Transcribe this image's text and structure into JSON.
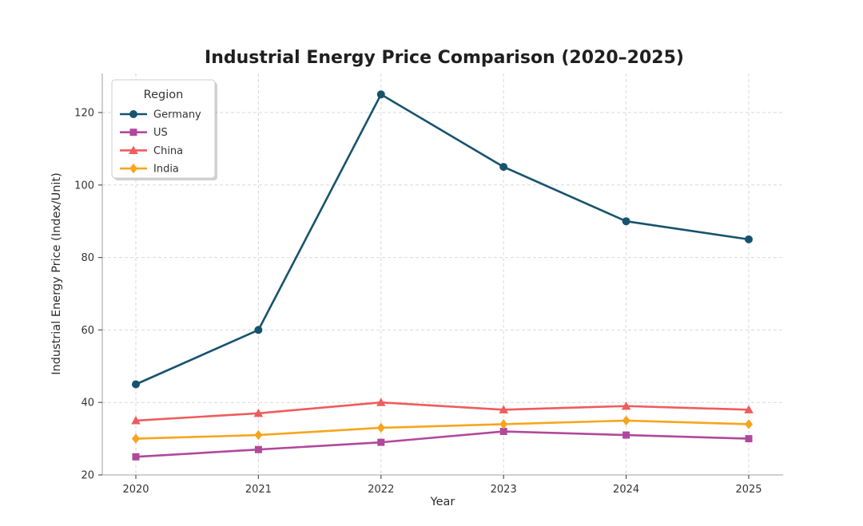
{
  "chart_data": {
    "type": "line",
    "title": "Industrial Energy Price Comparison (2020–2025)",
    "xlabel": "Year",
    "ylabel": "Industrial Energy Price (Index/Unit)",
    "legend_title": "Region",
    "legend_position": "upper left",
    "grid": true,
    "x": [
      2020,
      2021,
      2022,
      2023,
      2024,
      2025
    ],
    "xtick_labels": [
      "2020",
      "2021",
      "2022",
      "2023",
      "2024",
      "2025"
    ],
    "yticks": [
      20,
      40,
      60,
      80,
      100,
      120
    ],
    "ylim": [
      20,
      131
    ],
    "series": [
      {
        "name": "Germany",
        "marker": "circle",
        "color": "#17536d",
        "values": [
          45,
          60,
          125,
          105,
          90,
          85
        ]
      },
      {
        "name": "US",
        "marker": "square",
        "color": "#b1489c",
        "values": [
          25,
          27,
          29,
          32,
          31,
          30
        ]
      },
      {
        "name": "China",
        "marker": "triangle",
        "color": "#ef5c5c",
        "values": [
          35,
          37,
          40,
          38,
          39,
          38
        ]
      },
      {
        "name": "India",
        "marker": "diamond",
        "color": "#f7a51d",
        "values": [
          30,
          31,
          33,
          34,
          35,
          34
        ]
      }
    ],
    "colors": {
      "grid": "#d9d9d9",
      "spine": "#b3b3b3",
      "tick": "#555555",
      "background": "#ffffff"
    }
  }
}
